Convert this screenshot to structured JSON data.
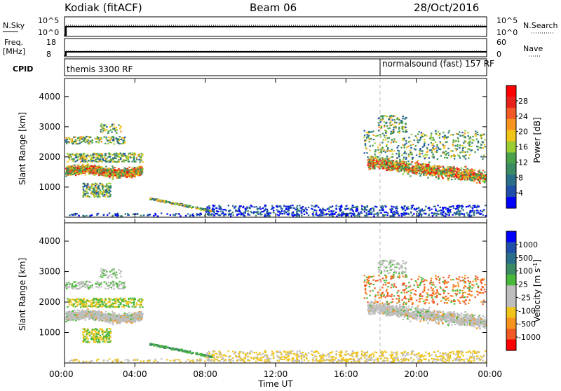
{
  "header": {
    "station": "Kodiak (fitACF)",
    "beam": "Beam 06",
    "date": "28/Oct/2016"
  },
  "top_panels": {
    "nsky_label": "N.Sky",
    "nsky_tick_top": "10^5",
    "nsky_tick_bottom": "10^0",
    "nsearch_label": "N.Search",
    "nsearch_tick_top": "10^5",
    "nsearch_tick_bottom": "10^0",
    "freq_label": "Freq.",
    "freq_unit": "[MHz]",
    "freq_tick_top": "18",
    "freq_tick_bottom": "8",
    "nave_label": "Nave",
    "nave_tick_top": "60",
    "nave_tick_bottom": "0",
    "cpid_label": "CPID",
    "cpid_segments": [
      {
        "label": "themis 3300 RF",
        "start_hour": 0
      },
      {
        "label": "normalsound (fast) 157 RF",
        "start_hour": 18
      }
    ]
  },
  "chart_data": [
    {
      "type": "heatmap",
      "title": "Power",
      "ylabel": "Slant Range [km]",
      "xlabel": "Time UT",
      "y_ticks": [
        "1000",
        "2000",
        "3000",
        "4000"
      ],
      "ylim": [
        0,
        4600
      ],
      "xlim": [
        0,
        24
      ],
      "colorbar_label": "Power [dB]",
      "colorbar_ticks": [
        "4",
        "8",
        "12",
        "16",
        "20",
        "24",
        "28"
      ],
      "colors": [
        "#0000ff",
        "#1f4fa8",
        "#2a6e8a",
        "#3d8b63",
        "#4aa24a",
        "#9acd32",
        "#f0c419",
        "#f7941d",
        "#f15a24",
        "#e8221b",
        "#ff0000"
      ]
    },
    {
      "type": "heatmap",
      "title": "Velocity",
      "ylabel": "Slant Range [km]",
      "xlabel": "Time UT",
      "y_ticks": [
        "1000",
        "2000",
        "3000",
        "4000"
      ],
      "ylim": [
        0,
        4600
      ],
      "xlim": [
        0,
        24
      ],
      "colorbar_label": "Velocity [m s^-1]",
      "colorbar_ticks": [
        "1000",
        "500",
        "100",
        "25",
        "-25",
        "-100",
        "-500",
        "-1000"
      ],
      "colors": [
        "#0000ff",
        "#1f4fa8",
        "#2a6e8a",
        "#3d8b63",
        "#4ab83a",
        "#bebebe",
        "#bebebe",
        "#f0c419",
        "#f7941d",
        "#f15a24",
        "#ff0000"
      ]
    }
  ],
  "x_axis": {
    "ticks": [
      "00:00",
      "04:00",
      "08:00",
      "12:00",
      "16:00",
      "20:00",
      "00:00"
    ],
    "label": "Time UT"
  }
}
